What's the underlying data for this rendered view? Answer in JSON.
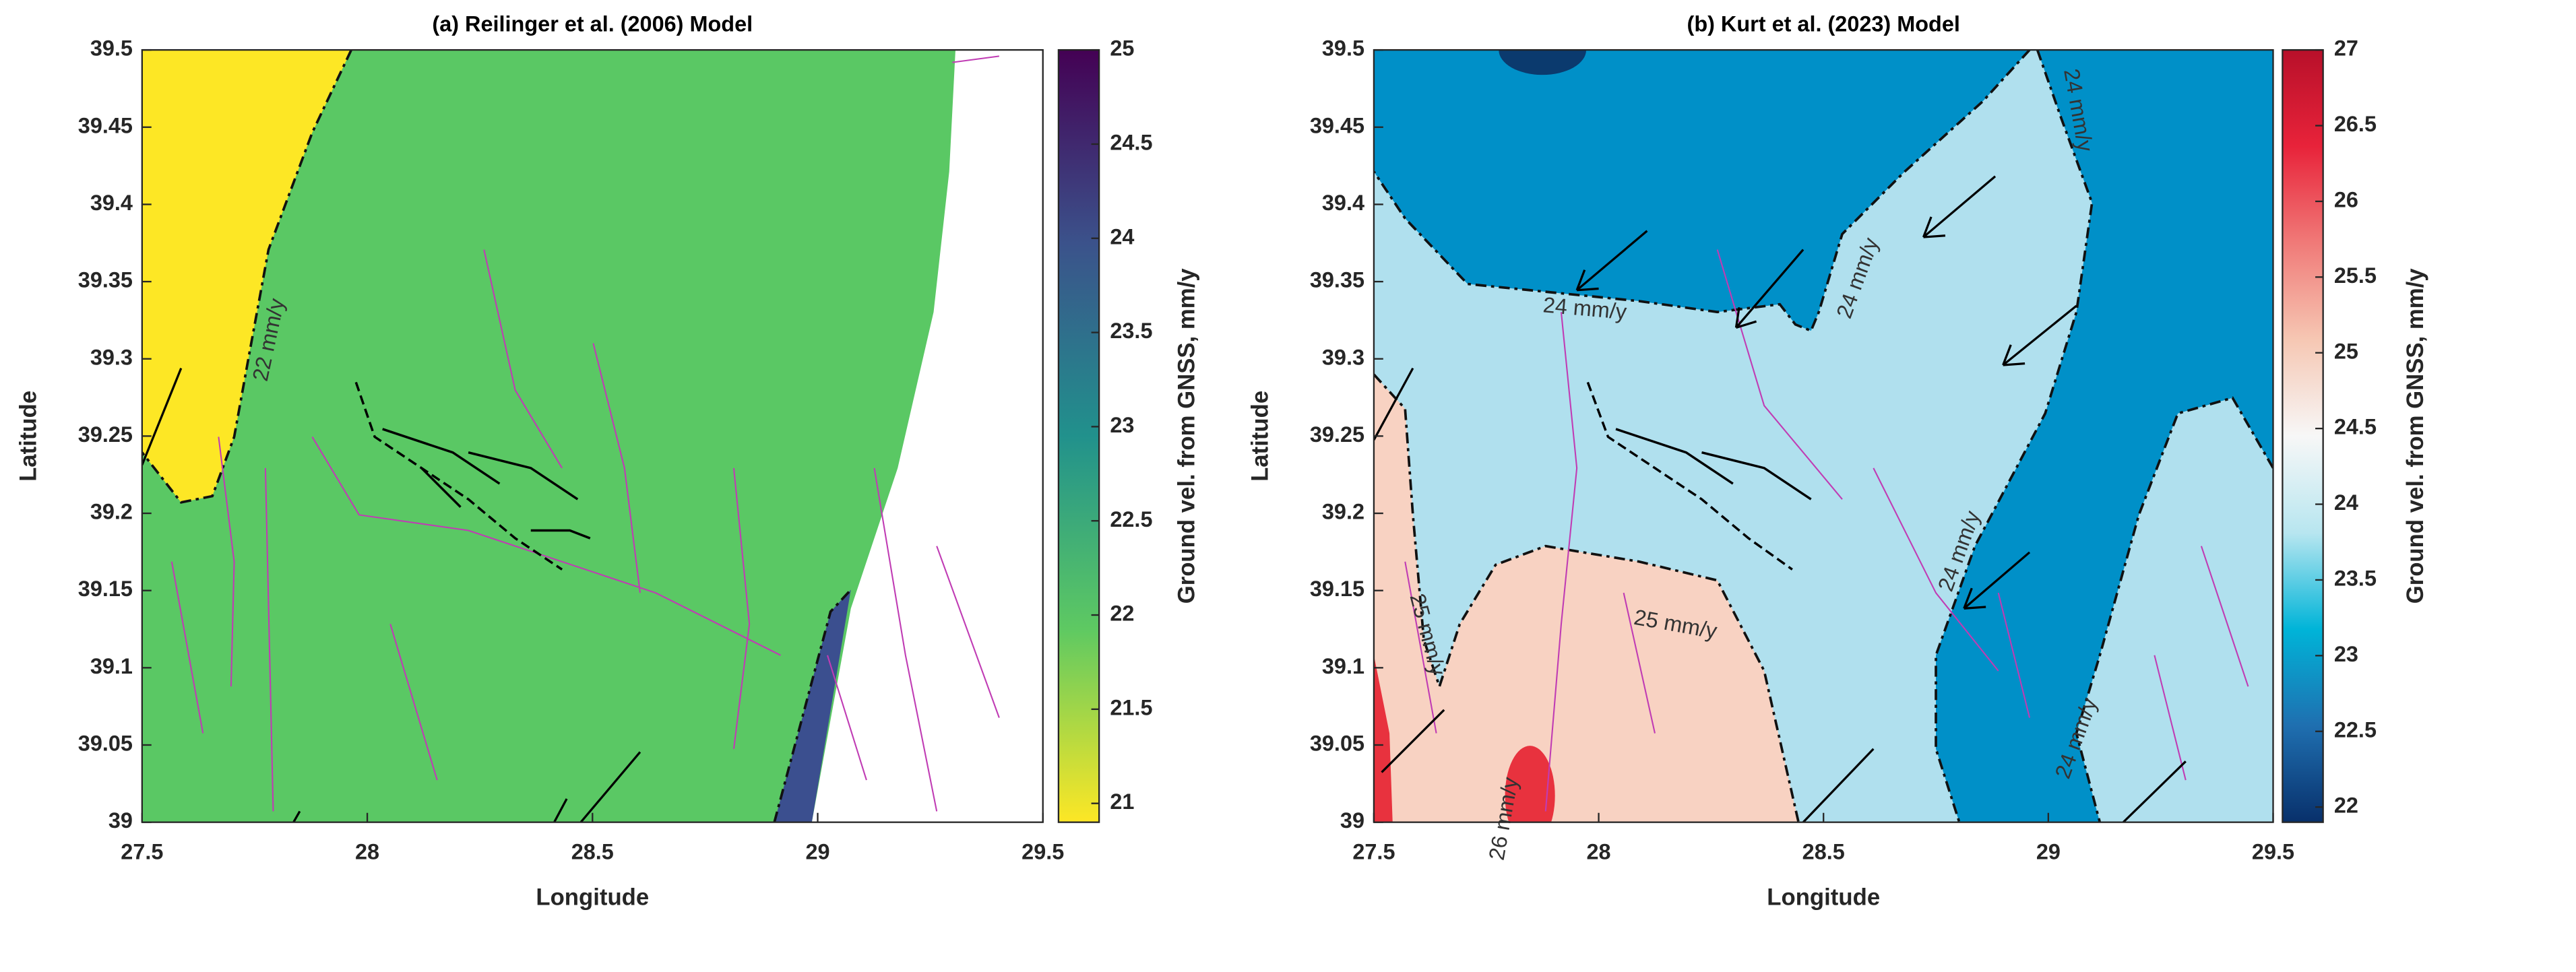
{
  "chart_data": [
    {
      "type": "map",
      "title": "(a) Reilinger et al. (2006) Model",
      "xlabel": "Longitude",
      "ylabel": "Latitude",
      "xlim": [
        27.5,
        29.5
      ],
      "ylim": [
        39,
        39.5
      ],
      "xticks": [
        27.5,
        28,
        28.5,
        29,
        29.5
      ],
      "yticks": [
        39,
        39.05,
        39.1,
        39.15,
        39.2,
        39.25,
        39.3,
        39.35,
        39.4,
        39.45,
        39.5
      ],
      "colorbar": {
        "label": "Ground vel. from GNSS, mm/y",
        "lim": [
          20.9,
          25
        ],
        "ticks": [
          21,
          21.5,
          22,
          22.5,
          23,
          23.5,
          24,
          24.5,
          25
        ],
        "colormap": [
          "#fde725",
          "#5ec962",
          "#21918c",
          "#3b528b",
          "#440154"
        ]
      },
      "annotations": [
        "22 mm/y"
      ]
    },
    {
      "type": "map",
      "title": "(b) Kurt et al. (2023) Model",
      "xlabel": "Longitude",
      "ylabel": "Latitude",
      "xlim": [
        27.5,
        29.5
      ],
      "ylim": [
        39,
        39.5
      ],
      "xticks": [
        27.5,
        28,
        28.5,
        29,
        29.5
      ],
      "yticks": [
        39,
        39.05,
        39.1,
        39.15,
        39.2,
        39.25,
        39.3,
        39.35,
        39.4,
        39.45,
        39.5
      ],
      "colorbar": {
        "label": "Ground vel. from GNSS, mm/y",
        "lim": [
          21.9,
          27
        ],
        "ticks": [
          22,
          22.5,
          23,
          23.5,
          24,
          24.5,
          25,
          25.5,
          26,
          26.5,
          27
        ],
        "colormap": [
          "#08306b",
          "#1f6fb0",
          "#00b4d8",
          "#b8e6f0",
          "#f7f7f7",
          "#f6c7b3",
          "#f07a78",
          "#e8233a",
          "#b8102a"
        ]
      },
      "annotations": [
        "24 mm/y",
        "24 mm/y",
        "24 mm/y",
        "24 mm/y",
        "24 mm/y",
        "25 mm/y",
        "25 mm/y",
        "26 mm/y"
      ]
    }
  ]
}
